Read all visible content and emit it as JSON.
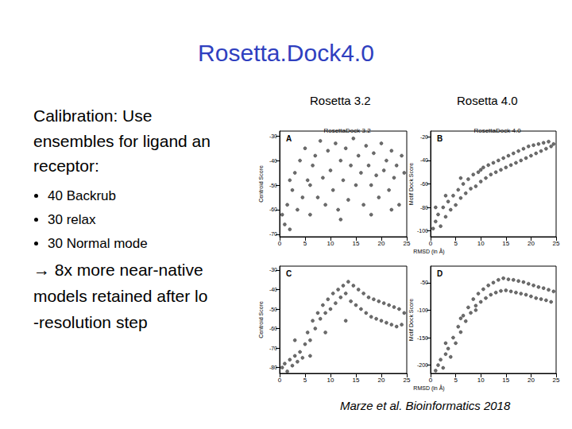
{
  "slide": {
    "title": "Rosetta.Dock4.0",
    "text": [
      "Calibration: Use",
      "ensembles for ligand an",
      "receptor:"
    ],
    "bullets": [
      "40 Backrub",
      "30 relax",
      "30 Normal mode"
    ],
    "conclusion": [
      "→ 8x more near-native",
      "models retained after lo",
      "-resolution step"
    ],
    "column_labels": [
      "Rosetta 3.2",
      "Rosetta 4.0"
    ],
    "citation": "Marze et al. Bioinformatics 2018"
  },
  "chart_data": [
    {
      "type": "scatter",
      "title": "RosettaDock 3.2",
      "annotation": "A",
      "y_label": "Centroid Score",
      "x": [
        0.5,
        1,
        1.5,
        2,
        2.5,
        3,
        3.5,
        4,
        4.5,
        5,
        5.5,
        6,
        6.5,
        7,
        7.5,
        8,
        8.5,
        9,
        9.5,
        10,
        10.5,
        11,
        11.5,
        12,
        12.5,
        13,
        13.5,
        14,
        14.5,
        15,
        15.5,
        16,
        16.5,
        17,
        17.5,
        18,
        18.5,
        19,
        19.5,
        20,
        20.5,
        21,
        21.5,
        22,
        22.5,
        23,
        23.5,
        24,
        24.5,
        2,
        6,
        12,
        18,
        22
      ],
      "values": [
        -62,
        -66,
        -58,
        -68,
        -52,
        -45,
        -60,
        -40,
        -55,
        -35,
        -48,
        -62,
        -42,
        -38,
        -55,
        -32,
        -47,
        -58,
        -36,
        -44,
        -52,
        -33,
        -60,
        -40,
        -48,
        -35,
        -56,
        -42,
        -31,
        -50,
        -38,
        -45,
        -58,
        -34,
        -42,
        -50,
        -37,
        -46,
        -55,
        -33,
        -44,
        -40,
        -52,
        -36,
        -47,
        -42,
        -58,
        -38,
        -45,
        -48,
        -50,
        -64,
        -62,
        -60
      ],
      "xlim": [
        0,
        25
      ],
      "xticks": [
        0,
        5,
        10,
        15,
        20,
        25
      ],
      "ylim": [
        -71,
        -28
      ],
      "yticks": [
        -70,
        -60,
        -50,
        -40,
        -30
      ],
      "color": "#555555",
      "marker": "circle"
    },
    {
      "type": "scatter",
      "title": "RosettaDock 4.0",
      "annotation": "B",
      "y_label": "Motif Dock Score",
      "x_label": "RMSD (in Å)",
      "x": [
        0.5,
        1,
        1.5,
        2,
        2.5,
        3,
        3.5,
        4,
        4.5,
        5,
        5.5,
        6,
        6.5,
        7,
        7.5,
        8,
        8.5,
        9,
        9.5,
        10,
        10.5,
        11,
        11.5,
        12,
        12.5,
        13,
        13.5,
        14,
        14.5,
        15,
        15.5,
        16,
        16.5,
        17,
        17.5,
        18,
        18.5,
        19,
        19.5,
        20,
        20.5,
        21,
        21.5,
        22,
        22.5,
        23,
        23.5,
        24,
        24.5,
        1,
        3,
        6,
        10
      ],
      "values": [
        -98,
        -92,
        -86,
        -96,
        -80,
        -88,
        -75,
        -82,
        -70,
        -78,
        -65,
        -72,
        -60,
        -68,
        -56,
        -64,
        -52,
        -62,
        -50,
        -58,
        -46,
        -55,
        -44,
        -52,
        -42,
        -50,
        -40,
        -48,
        -38,
        -46,
        -36,
        -44,
        -34,
        -42,
        -32,
        -40,
        -30,
        -38,
        -28,
        -36,
        -27,
        -34,
        -26,
        -32,
        -25,
        -30,
        -24,
        -28,
        -26,
        -80,
        -70,
        -55,
        -48
      ],
      "xlim": [
        0,
        25
      ],
      "xticks": [
        0,
        5,
        10,
        15,
        20,
        25
      ],
      "ylim": [
        -105,
        -15
      ],
      "yticks": [
        -100,
        -80,
        -60,
        -40,
        -20
      ],
      "color": "#555555",
      "marker": "circle"
    },
    {
      "type": "scatter",
      "annotation": "C",
      "y_label": "Centroid Score",
      "x": [
        0.5,
        1,
        1.5,
        2,
        2.5,
        3,
        3.5,
        4,
        4.5,
        5,
        5.5,
        6,
        6.5,
        7,
        7.5,
        8,
        8.5,
        9,
        9.5,
        10,
        10.5,
        11,
        11.5,
        12,
        12.5,
        13,
        13.5,
        14,
        14.5,
        15,
        15.5,
        16,
        16.5,
        17,
        17.5,
        18,
        18.5,
        19,
        19.5,
        20,
        20.5,
        21,
        21.5,
        22,
        22.5,
        23,
        23.5,
        24,
        24.5,
        3,
        6,
        9,
        13
      ],
      "values": [
        -80,
        -78,
        -82,
        -76,
        -79,
        -74,
        -77,
        -72,
        -75,
        -68,
        -62,
        -66,
        -56,
        -60,
        -52,
        -55,
        -48,
        -52,
        -45,
        -50,
        -42,
        -47,
        -40,
        -44,
        -38,
        -42,
        -36,
        -46,
        -38,
        -48,
        -40,
        -50,
        -42,
        -52,
        -44,
        -54,
        -45,
        -55,
        -46,
        -56,
        -47,
        -57,
        -48,
        -58,
        -49,
        -59,
        -50,
        -58,
        -52,
        -66,
        -74,
        -62,
        -56
      ],
      "xlim": [
        0,
        25
      ],
      "xticks": [
        0,
        5,
        10,
        15,
        20,
        25
      ],
      "ylim": [
        -83,
        -28
      ],
      "yticks": [
        -80,
        -70,
        -60,
        -50,
        -40,
        -30
      ],
      "color": "#555555",
      "marker": "circle"
    },
    {
      "type": "scatter",
      "annotation": "D",
      "y_label": "Motif Dock Score",
      "x_label": "RMSD (in Å)",
      "x": [
        1,
        1.5,
        2,
        2.5,
        3,
        3.5,
        4,
        4.5,
        5,
        5.5,
        6,
        6.5,
        7,
        7.5,
        8,
        8.5,
        9,
        9.5,
        10,
        10.5,
        11,
        11.5,
        12,
        12.5,
        13,
        13.5,
        14,
        14.5,
        15,
        15.5,
        16,
        16.5,
        17,
        17.5,
        18,
        18.5,
        19,
        19.5,
        20,
        20.5,
        21,
        21.5,
        22,
        22.5,
        23,
        23.5,
        24,
        24.5,
        3,
        6,
        9
      ],
      "values": [
        -210,
        -200,
        -190,
        -205,
        -180,
        -170,
        -185,
        -150,
        -160,
        -130,
        -140,
        -110,
        -120,
        -95,
        -105,
        -80,
        -92,
        -70,
        -85,
        -62,
        -78,
        -55,
        -72,
        -50,
        -68,
        -45,
        -65,
        -42,
        -64,
        -44,
        -66,
        -45,
        -68,
        -47,
        -70,
        -49,
        -72,
        -52,
        -75,
        -55,
        -78,
        -58,
        -80,
        -60,
        -82,
        -63,
        -85,
        -66,
        -160,
        -115,
        -100
      ],
      "xlim": [
        0,
        25
      ],
      "xticks": [
        0,
        5,
        10,
        15,
        20,
        25
      ],
      "ylim": [
        -215,
        -20
      ],
      "yticks": [
        -200,
        -150,
        -100,
        -50
      ],
      "color": "#555555",
      "marker": "circle"
    }
  ]
}
